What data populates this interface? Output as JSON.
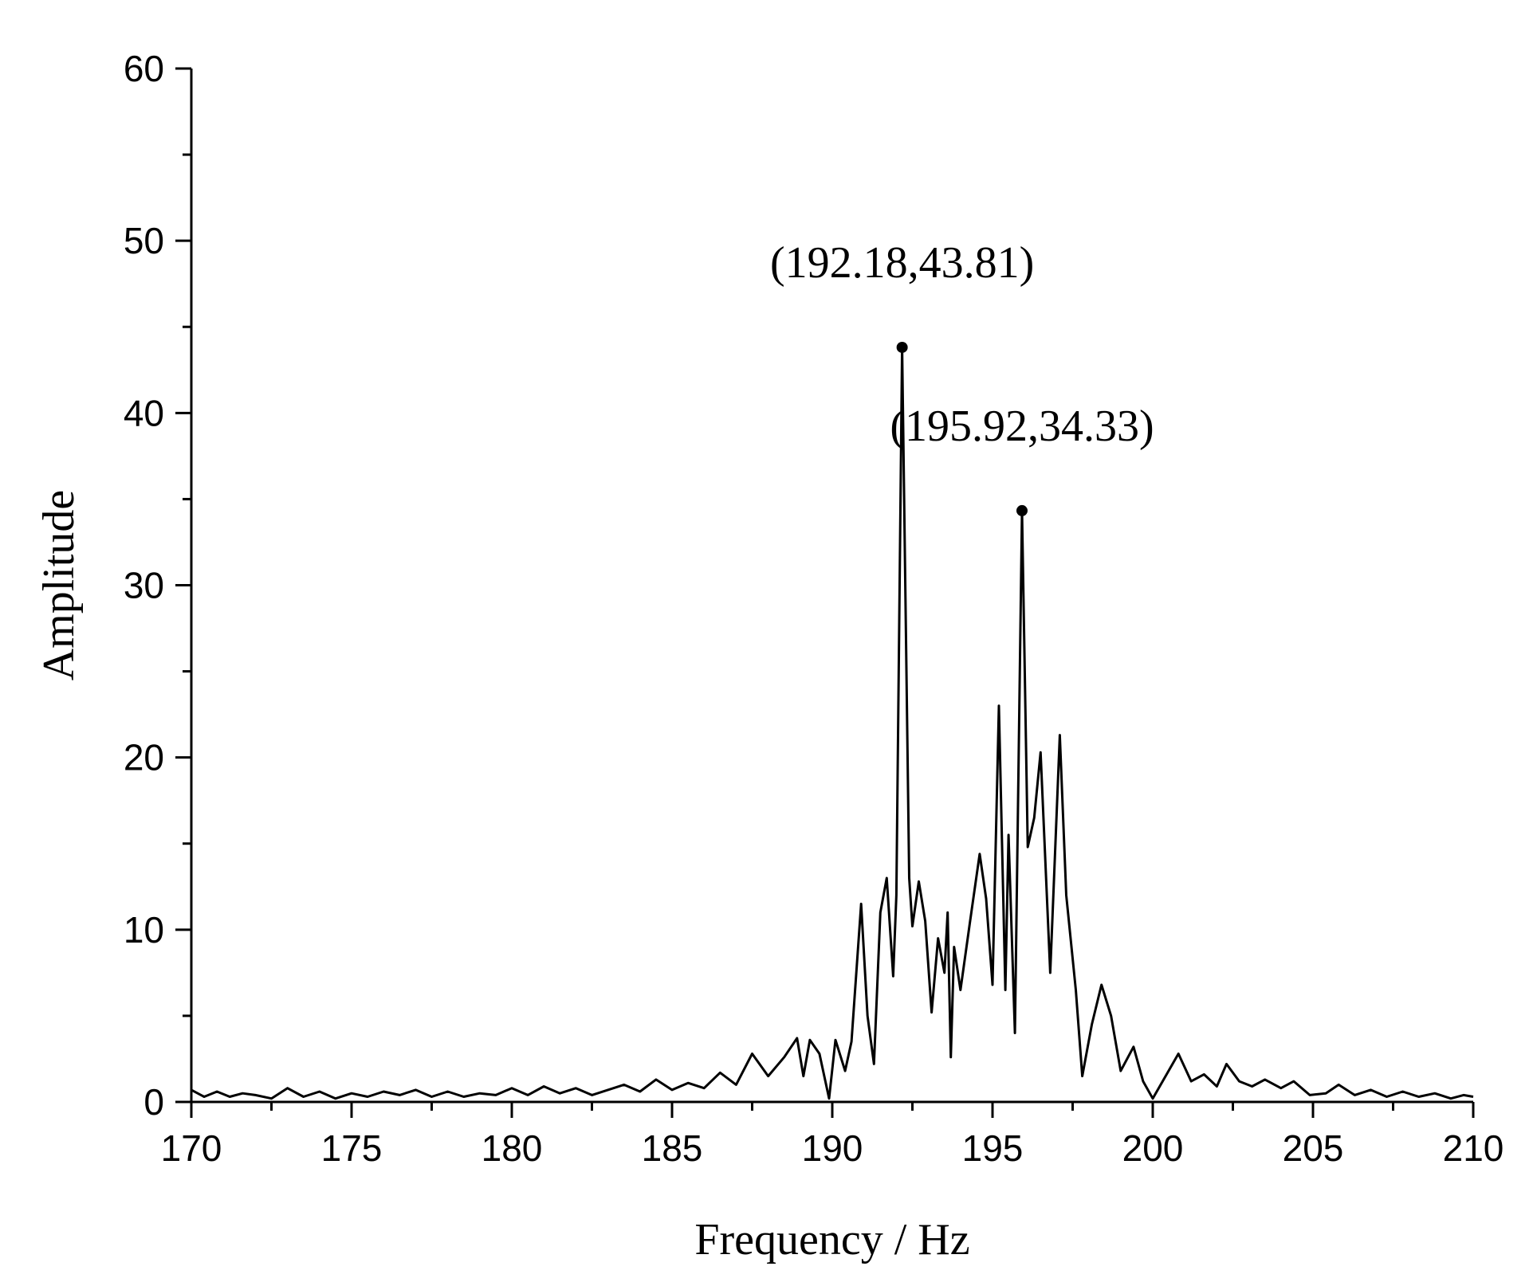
{
  "chart_data": {
    "type": "line",
    "title": "",
    "xlabel": "Frequency / Hz",
    "ylabel": "Amplitude",
    "xlim": [
      170,
      210
    ],
    "ylim": [
      0,
      60
    ],
    "x_major_ticks": [
      170,
      175,
      180,
      185,
      190,
      195,
      200,
      205,
      210
    ],
    "x_minor_ticks": [
      172.5,
      177.5,
      182.5,
      187.5,
      192.5,
      197.5,
      202.5,
      207.5
    ],
    "y_major_ticks": [
      0,
      10,
      20,
      30,
      40,
      50,
      60
    ],
    "y_minor_ticks": [
      5,
      15,
      25,
      35,
      45,
      55
    ],
    "grid": false,
    "legend": "none",
    "colors": {
      "line": "#000000",
      "marker": "#000000"
    },
    "series": [
      {
        "points": [
          [
            170.0,
            0.7
          ],
          [
            170.4,
            0.3
          ],
          [
            170.8,
            0.6
          ],
          [
            171.2,
            0.3
          ],
          [
            171.6,
            0.5
          ],
          [
            172.0,
            0.4
          ],
          [
            172.5,
            0.2
          ],
          [
            173.0,
            0.8
          ],
          [
            173.5,
            0.3
          ],
          [
            174.0,
            0.6
          ],
          [
            174.5,
            0.2
          ],
          [
            175.0,
            0.5
          ],
          [
            175.5,
            0.3
          ],
          [
            176.0,
            0.6
          ],
          [
            176.5,
            0.4
          ],
          [
            177.0,
            0.7
          ],
          [
            177.5,
            0.3
          ],
          [
            178.0,
            0.6
          ],
          [
            178.5,
            0.3
          ],
          [
            179.0,
            0.5
          ],
          [
            179.5,
            0.4
          ],
          [
            180.0,
            0.8
          ],
          [
            180.5,
            0.4
          ],
          [
            181.0,
            0.9
          ],
          [
            181.5,
            0.5
          ],
          [
            182.0,
            0.8
          ],
          [
            182.5,
            0.4
          ],
          [
            183.0,
            0.7
          ],
          [
            183.5,
            1.0
          ],
          [
            184.0,
            0.6
          ],
          [
            184.5,
            1.3
          ],
          [
            185.0,
            0.7
          ],
          [
            185.5,
            1.1
          ],
          [
            186.0,
            0.8
          ],
          [
            186.5,
            1.7
          ],
          [
            187.0,
            1.0
          ],
          [
            187.5,
            2.8
          ],
          [
            188.0,
            1.5
          ],
          [
            188.5,
            2.6
          ],
          [
            188.9,
            3.7
          ],
          [
            189.1,
            1.5
          ],
          [
            189.3,
            3.6
          ],
          [
            189.6,
            2.8
          ],
          [
            189.9,
            0.2
          ],
          [
            190.1,
            3.6
          ],
          [
            190.4,
            1.8
          ],
          [
            190.6,
            3.5
          ],
          [
            190.9,
            11.5
          ],
          [
            191.1,
            5.0
          ],
          [
            191.3,
            2.2
          ],
          [
            191.5,
            11.0
          ],
          [
            191.7,
            13.0
          ],
          [
            191.9,
            7.3
          ],
          [
            192.0,
            12.0
          ],
          [
            192.18,
            43.81
          ],
          [
            192.4,
            13.0
          ],
          [
            192.5,
            10.2
          ],
          [
            192.7,
            12.8
          ],
          [
            192.9,
            10.5
          ],
          [
            193.1,
            5.2
          ],
          [
            193.3,
            9.5
          ],
          [
            193.5,
            7.5
          ],
          [
            193.6,
            11.0
          ],
          [
            193.7,
            2.6
          ],
          [
            193.8,
            9.0
          ],
          [
            194.0,
            6.5
          ],
          [
            194.3,
            10.5
          ],
          [
            194.6,
            14.4
          ],
          [
            194.8,
            11.8
          ],
          [
            195.0,
            6.8
          ],
          [
            195.2,
            23.0
          ],
          [
            195.4,
            6.5
          ],
          [
            195.5,
            15.5
          ],
          [
            195.7,
            4.0
          ],
          [
            195.92,
            34.33
          ],
          [
            196.1,
            14.8
          ],
          [
            196.3,
            16.5
          ],
          [
            196.5,
            20.3
          ],
          [
            196.8,
            7.5
          ],
          [
            197.1,
            21.3
          ],
          [
            197.3,
            12.0
          ],
          [
            197.6,
            6.5
          ],
          [
            197.8,
            1.5
          ],
          [
            198.1,
            4.5
          ],
          [
            198.4,
            6.8
          ],
          [
            198.7,
            5.0
          ],
          [
            199.0,
            1.8
          ],
          [
            199.4,
            3.2
          ],
          [
            199.7,
            1.2
          ],
          [
            200.0,
            0.2
          ],
          [
            200.4,
            1.5
          ],
          [
            200.8,
            2.8
          ],
          [
            201.2,
            1.2
          ],
          [
            201.6,
            1.6
          ],
          [
            202.0,
            0.9
          ],
          [
            202.3,
            2.2
          ],
          [
            202.7,
            1.2
          ],
          [
            203.1,
            0.9
          ],
          [
            203.5,
            1.3
          ],
          [
            204.0,
            0.8
          ],
          [
            204.4,
            1.2
          ],
          [
            204.9,
            0.4
          ],
          [
            205.4,
            0.5
          ],
          [
            205.8,
            1.0
          ],
          [
            206.3,
            0.4
          ],
          [
            206.8,
            0.7
          ],
          [
            207.3,
            0.3
          ],
          [
            207.8,
            0.6
          ],
          [
            208.3,
            0.3
          ],
          [
            208.8,
            0.5
          ],
          [
            209.3,
            0.2
          ],
          [
            209.7,
            0.4
          ],
          [
            210.0,
            0.3
          ]
        ]
      }
    ],
    "annotations": [
      {
        "x": 192.18,
        "y": 43.81,
        "label": "(192.18,43.81)"
      },
      {
        "x": 195.92,
        "y": 34.33,
        "label": "(195.92,34.33)"
      }
    ]
  }
}
